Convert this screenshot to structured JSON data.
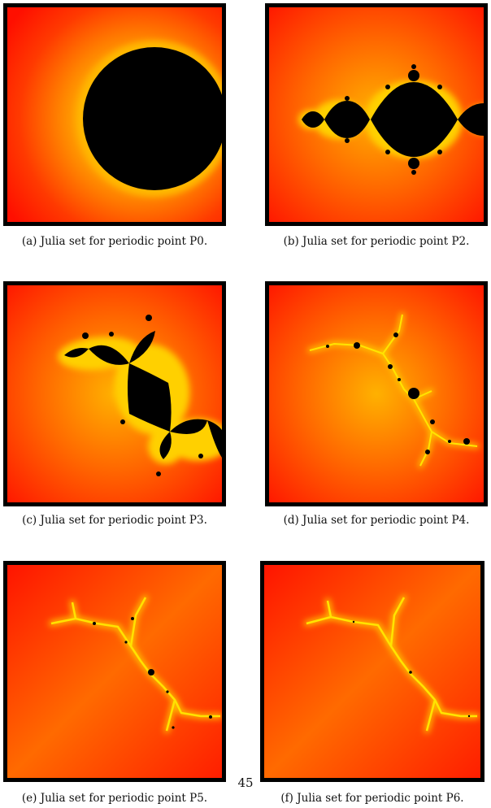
{
  "figures": [
    {
      "caption": "(a) Julia set for periodic point P0."
    },
    {
      "caption": "(b) Julia set for periodic point P2."
    },
    {
      "caption": "(c) Julia set for periodic point P3."
    },
    {
      "caption": "(d) Julia set for periodic point P4."
    },
    {
      "caption": "(e) Julia set for periodic point P5."
    },
    {
      "caption": "(f) Julia set for periodic point P6."
    }
  ],
  "page_number": "45",
  "colors": {
    "outer": "#ff0f00",
    "glow": "#ffb000",
    "set": "#000000",
    "frame": "#000000"
  }
}
